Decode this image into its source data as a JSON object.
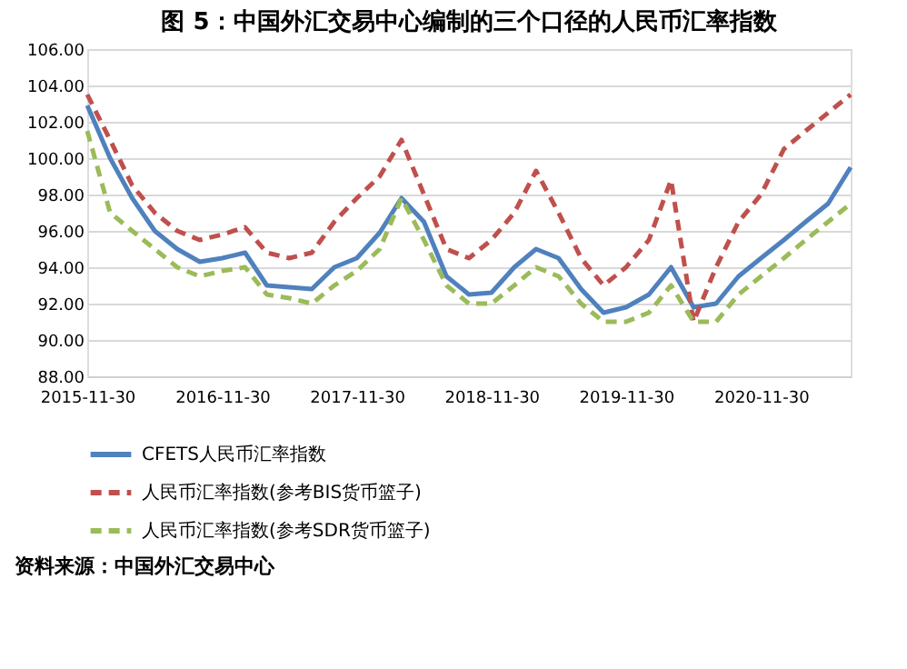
{
  "chart_data": {
    "type": "line",
    "title": "图 5：中国外汇交易中心编制的三个口径的人民币汇率指数",
    "x": [
      "2015-11-30",
      "2016-01-31",
      "2016-03-31",
      "2016-05-31",
      "2016-07-31",
      "2016-09-30",
      "2016-11-30",
      "2017-01-31",
      "2017-03-31",
      "2017-05-31",
      "2017-07-31",
      "2017-09-30",
      "2017-11-30",
      "2018-01-31",
      "2018-03-31",
      "2018-05-31",
      "2018-07-31",
      "2018-09-30",
      "2018-11-30",
      "2019-01-31",
      "2019-03-31",
      "2019-05-31",
      "2019-07-31",
      "2019-09-30",
      "2019-11-30",
      "2020-01-31",
      "2020-03-31",
      "2020-05-31",
      "2020-07-31",
      "2020-09-30",
      "2020-11-30",
      "2021-01-31",
      "2021-03-31",
      "2021-05-31",
      "2021-07-31"
    ],
    "series": [
      {
        "name": "CFETS人民币汇率指数",
        "color": "#4f81bd",
        "line_style": "solid",
        "values": [
          102.9,
          100.0,
          97.8,
          96.0,
          95.0,
          94.3,
          94.5,
          94.8,
          93.0,
          92.9,
          92.8,
          94.0,
          94.5,
          95.9,
          97.8,
          96.5,
          93.5,
          92.5,
          92.6,
          94.0,
          95.0,
          94.5,
          92.8,
          91.5,
          91.8,
          92.5,
          94.0,
          91.8,
          92.0,
          93.5,
          94.5,
          95.5,
          96.5,
          97.5,
          99.5
        ]
      },
      {
        "name": "人民币汇率指数(参考BIS货币篮子)",
        "color": "#c0504d",
        "line_style": "dashed",
        "values": [
          103.5,
          101.0,
          98.5,
          97.0,
          96.0,
          95.5,
          95.8,
          96.2,
          94.8,
          94.5,
          94.8,
          96.5,
          97.8,
          99.0,
          101.0,
          98.0,
          95.0,
          94.5,
          95.5,
          97.0,
          99.3,
          97.0,
          94.5,
          93.0,
          94.0,
          95.5,
          98.8,
          91.0,
          94.0,
          96.5,
          98.0,
          100.5,
          101.5,
          102.5,
          103.5
        ]
      },
      {
        "name": "人民币汇率指数(参考SDR货币篮子)",
        "color": "#9bbb59",
        "line_style": "dashed",
        "values": [
          101.5,
          97.0,
          96.0,
          95.0,
          94.0,
          93.5,
          93.8,
          94.0,
          92.5,
          92.3,
          92.0,
          93.0,
          93.8,
          95.0,
          97.8,
          95.5,
          93.0,
          92.0,
          92.0,
          93.0,
          94.0,
          93.5,
          92.0,
          91.0,
          91.0,
          91.5,
          93.0,
          91.0,
          91.0,
          92.5,
          93.5,
          94.5,
          95.5,
          96.5,
          97.5
        ]
      }
    ],
    "xlim": [
      "2015-11-30",
      "2021-07-31"
    ],
    "xticks": [
      {
        "value": "2015-11-30",
        "label": "2015-11-30"
      },
      {
        "value": "2016-11-30",
        "label": "2016-11-30"
      },
      {
        "value": "2017-11-30",
        "label": "2017-11-30"
      },
      {
        "value": "2018-11-30",
        "label": "2018-11-30"
      },
      {
        "value": "2019-11-30",
        "label": "2019-11-30"
      },
      {
        "value": "2020-11-30",
        "label": "2020-11-30"
      }
    ],
    "ylim": [
      88,
      106
    ],
    "yticks": [
      {
        "value": 88,
        "label": "88.00"
      },
      {
        "value": 90,
        "label": "90.00"
      },
      {
        "value": 92,
        "label": "92.00"
      },
      {
        "value": 94,
        "label": "94.00"
      },
      {
        "value": 96,
        "label": "96.00"
      },
      {
        "value": 98,
        "label": "98.00"
      },
      {
        "value": 100,
        "label": "100.00"
      },
      {
        "value": 102,
        "label": "102.00"
      },
      {
        "value": 104,
        "label": "104.00"
      },
      {
        "value": 106,
        "label": "106.00"
      }
    ],
    "grid": "y",
    "legend": "bottom",
    "annotations": [
      "资料来源：中国外汇交易中心"
    ]
  }
}
